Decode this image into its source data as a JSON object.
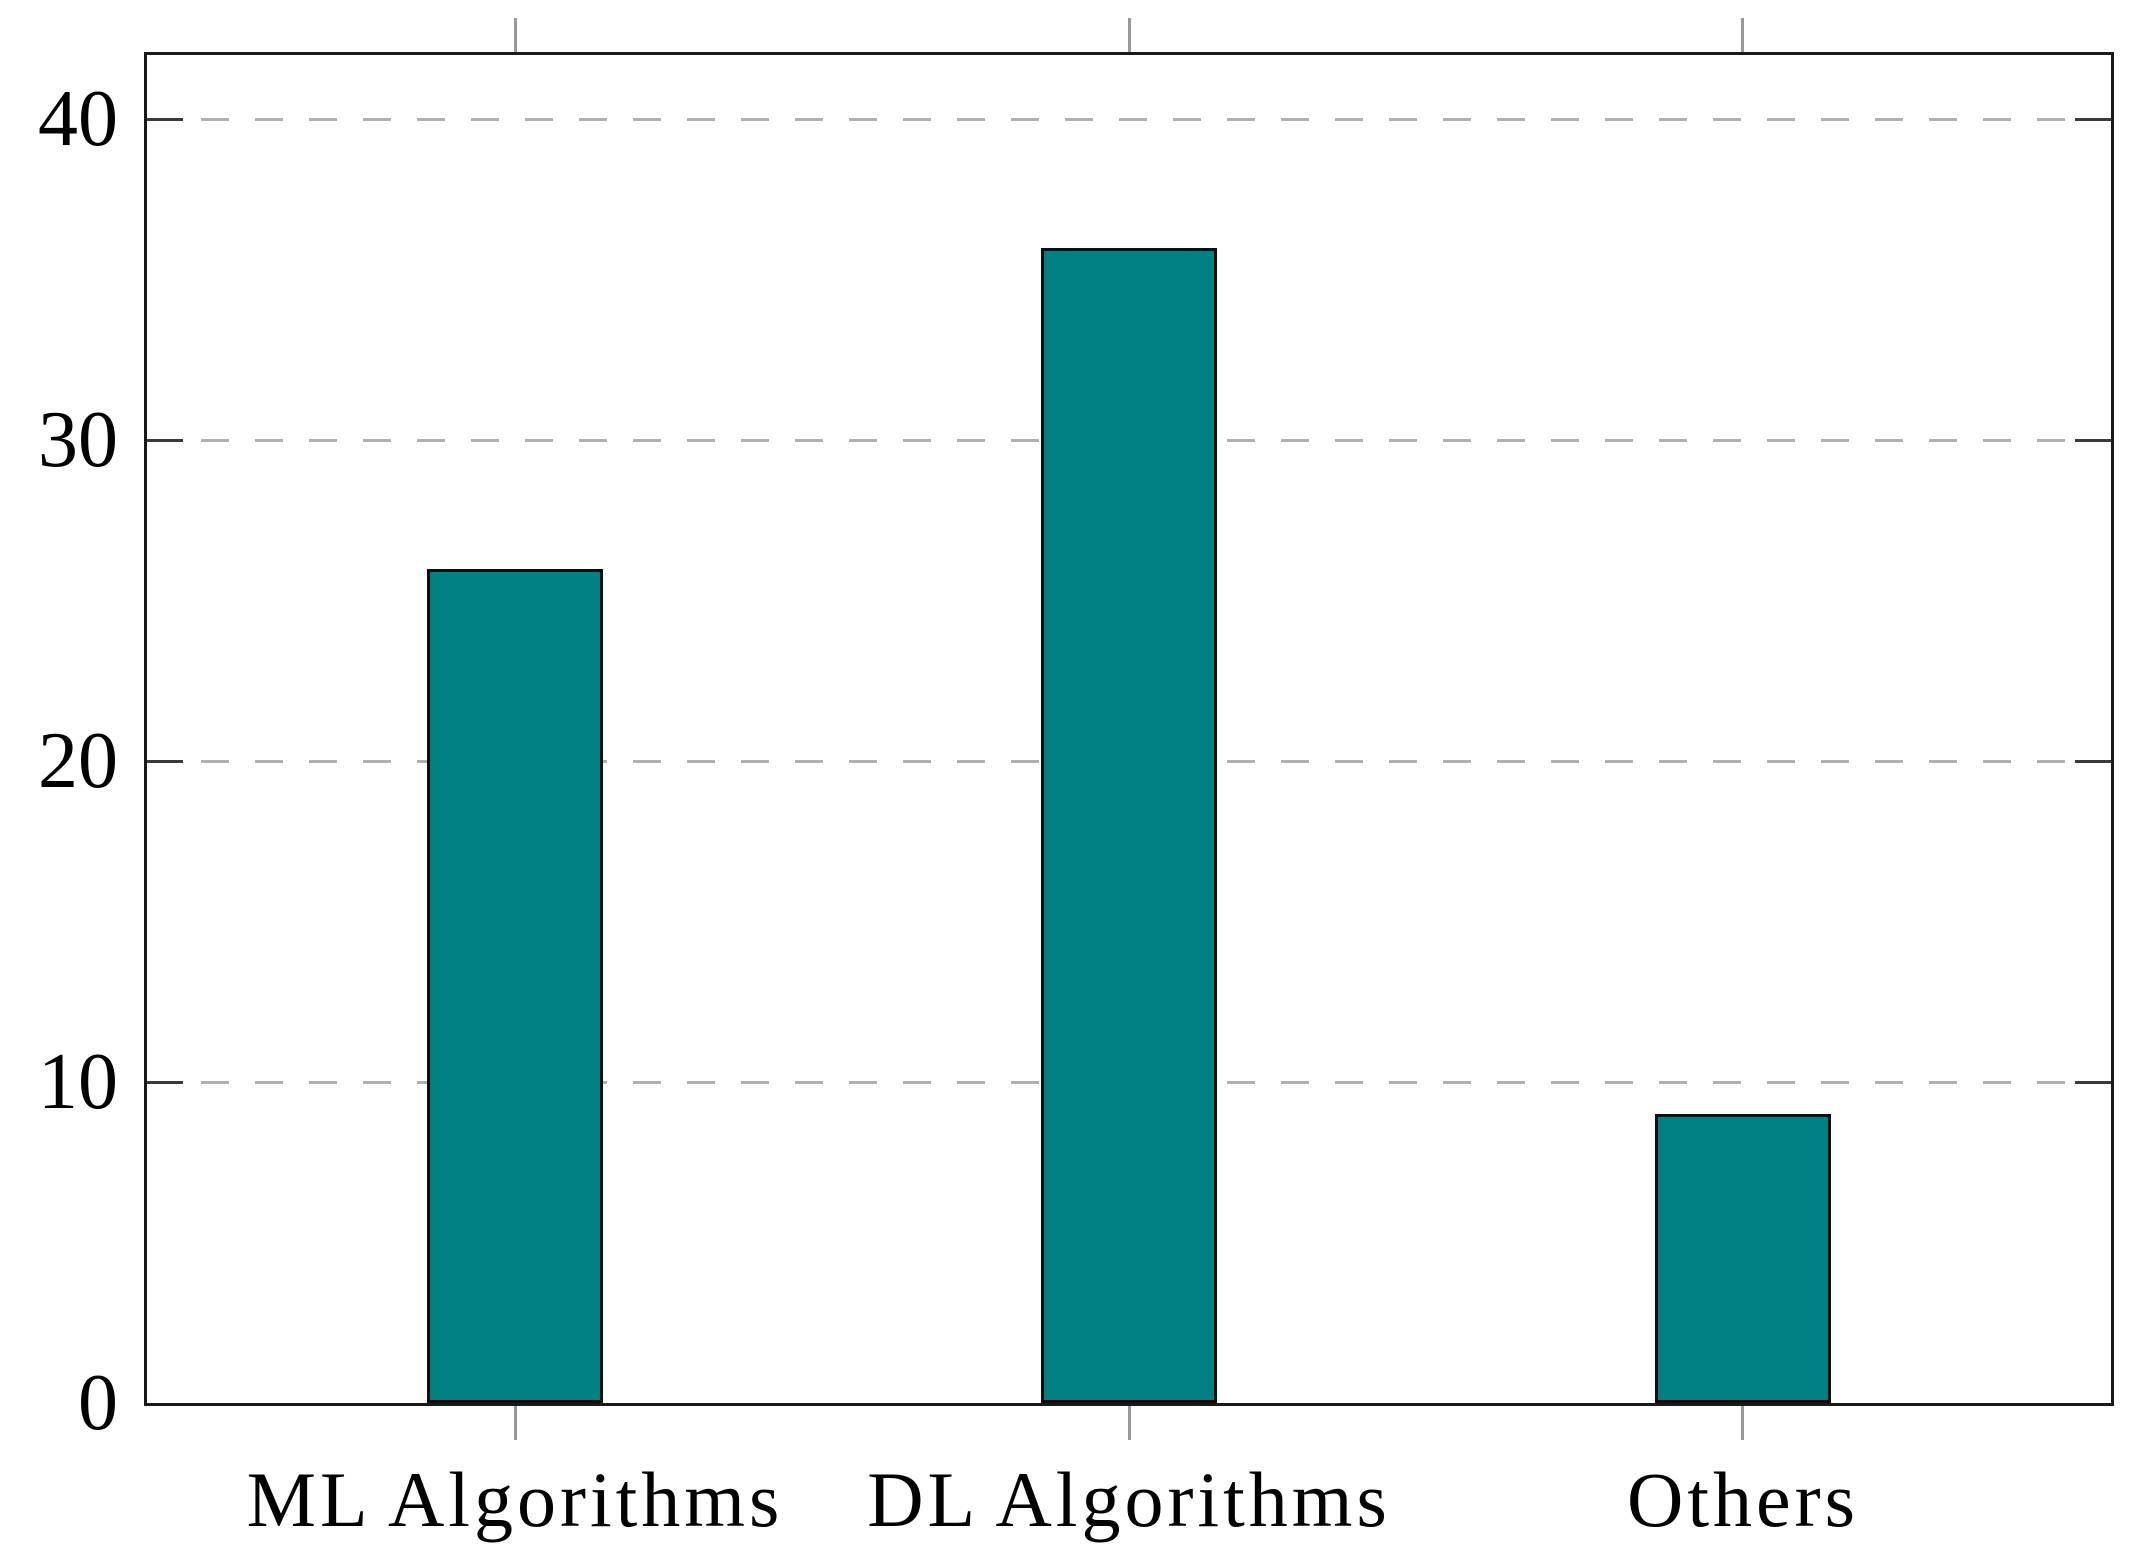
{
  "chart_data": {
    "type": "bar",
    "title": "",
    "xlabel": "",
    "ylabel": "",
    "categories": [
      "ML Algorithms",
      "DL Algorithms",
      "Others"
    ],
    "values": [
      26,
      36,
      9
    ],
    "ylim": [
      0,
      42
    ],
    "yticks": [
      0,
      10,
      20,
      30,
      40
    ],
    "grid": "horizontal dashed gridlines at y ticks",
    "legend": "none",
    "colors": {
      "bar_fill": "#008080",
      "bar_border": "#0d0d0d",
      "axis_frame": "#1a1a1a",
      "gridline": "#b0b0b0",
      "x_tick_mark": "#999999",
      "y_tick_mark": "#3a3a3a",
      "text": "#000000",
      "background": "#ffffff"
    }
  }
}
